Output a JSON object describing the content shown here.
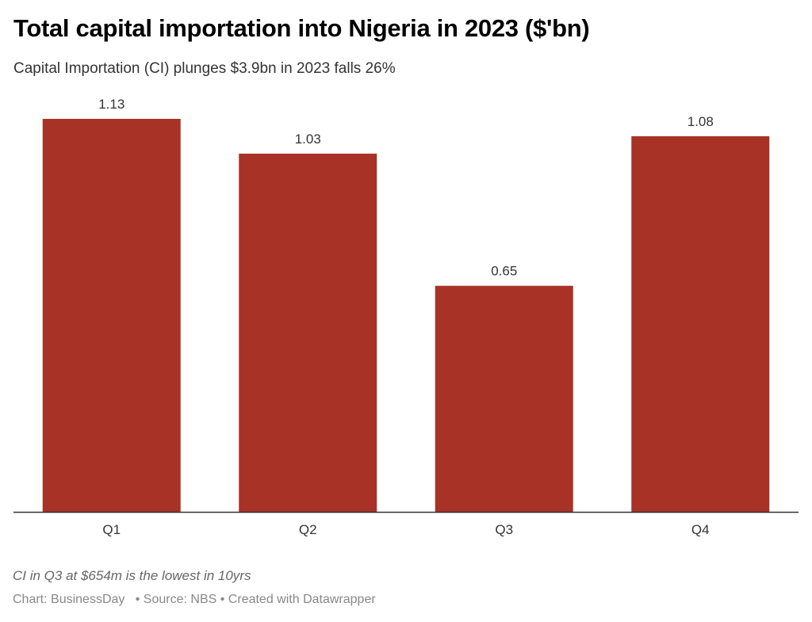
{
  "header": {
    "title": "Total capital importation into Nigeria in 2023 ($'bn)",
    "subtitle": "Capital Importation (CI) plunges $3.9bn in 2023 falls 26%"
  },
  "footer": {
    "note": "CI in Q3 at $654m is the lowest in 10yrs",
    "credit": "Chart: BusinessDay",
    "source": "Source: NBS",
    "tool": "Created with Datawrapper",
    "separator": "•"
  },
  "chart_data": {
    "type": "bar",
    "title": "Total capital importation into Nigeria in 2023 ($'bn)",
    "subtitle": "Capital Importation (CI) plunges $3.9bn in 2023 falls 26%",
    "categories": [
      "Q1",
      "Q2",
      "Q3",
      "Q4"
    ],
    "values": [
      1.13,
      1.03,
      0.65,
      1.08
    ],
    "data_labels": [
      "1.13",
      "1.03",
      "0.65",
      "1.08"
    ],
    "xlabel": "",
    "ylabel": "",
    "ylim": [
      0,
      1.13
    ],
    "grid": false,
    "legend": "none",
    "bar_color": "#a93226",
    "axis_color": "#333333"
  }
}
